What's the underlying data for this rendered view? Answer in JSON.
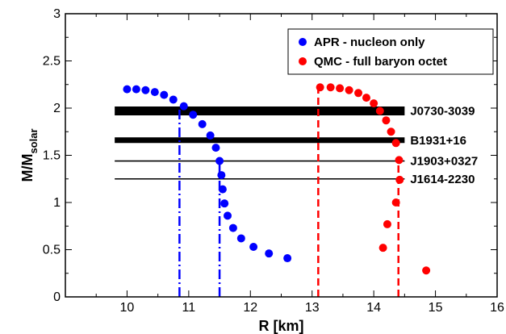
{
  "chart_data": {
    "type": "scatter",
    "xlabel": "R [km]",
    "ylabel": "M/M",
    "ylabel_sub": "solar",
    "xlim": [
      9.0,
      16.0
    ],
    "ylim": [
      0.0,
      3.0
    ],
    "x_ticks": [
      10,
      11,
      12,
      13,
      14,
      15,
      16
    ],
    "y_ticks": [
      0,
      0.5,
      1,
      1.5,
      2,
      2.5,
      3
    ],
    "y_tick_labels": [
      "0",
      "0.5",
      "1",
      "1.5",
      "2",
      "2.5",
      "3"
    ],
    "legend_position": "top-right",
    "series": [
      {
        "name": "APR - nucleon only",
        "color": "#0000ff",
        "points": [
          [
            10.0,
            2.2
          ],
          [
            10.15,
            2.2
          ],
          [
            10.3,
            2.19
          ],
          [
            10.45,
            2.17
          ],
          [
            10.6,
            2.14
          ],
          [
            10.75,
            2.09
          ],
          [
            10.92,
            2.02
          ],
          [
            11.07,
            1.93
          ],
          [
            11.22,
            1.83
          ],
          [
            11.35,
            1.71
          ],
          [
            11.44,
            1.58
          ],
          [
            11.5,
            1.44
          ],
          [
            11.53,
            1.29
          ],
          [
            11.55,
            1.14
          ],
          [
            11.58,
            0.99
          ],
          [
            11.63,
            0.86
          ],
          [
            11.72,
            0.73
          ],
          [
            11.85,
            0.62
          ],
          [
            12.05,
            0.53
          ],
          [
            12.3,
            0.46
          ],
          [
            12.6,
            0.41
          ]
        ]
      },
      {
        "name": "QMC - full baryon octet",
        "color": "#ff0000",
        "points": [
          [
            13.13,
            2.22
          ],
          [
            13.3,
            2.22
          ],
          [
            13.45,
            2.21
          ],
          [
            13.6,
            2.19
          ],
          [
            13.75,
            2.16
          ],
          [
            13.88,
            2.11
          ],
          [
            14.0,
            2.05
          ],
          [
            14.1,
            1.97
          ],
          [
            14.2,
            1.87
          ],
          [
            14.28,
            1.75
          ],
          [
            14.36,
            1.63
          ],
          [
            14.41,
            1.45
          ],
          [
            14.42,
            1.24
          ],
          [
            14.36,
            1.0
          ],
          [
            14.22,
            0.77
          ],
          [
            14.15,
            0.52
          ],
          [
            14.85,
            0.28
          ]
        ]
      }
    ],
    "pulsars": [
      {
        "name": "J0730-3039",
        "mass": 1.97,
        "thickness": "thick"
      },
      {
        "name": "B1931+16",
        "mass": 1.66,
        "thickness": "medium"
      },
      {
        "name": "J1903+0327",
        "mass": 1.44,
        "thickness": "thin"
      },
      {
        "name": "J1614-2230",
        "mass": 1.25,
        "thickness": "thin"
      }
    ],
    "band_x_range": [
      9.8,
      14.5
    ],
    "radius_markers": [
      {
        "series": "APR - nucleon only",
        "x": 10.85,
        "ymax": 2.0,
        "style": "dash-dot",
        "color": "#0000ff"
      },
      {
        "series": "APR - nucleon only",
        "x": 11.5,
        "ymax": 1.44,
        "style": "dash-dot",
        "color": "#0000ff"
      },
      {
        "series": "QMC - full baryon octet",
        "x": 13.1,
        "ymax": 2.22,
        "style": "dashed",
        "color": "#ff0000"
      },
      {
        "series": "QMC - full baryon octet",
        "x": 14.4,
        "ymax": 1.44,
        "style": "dashed",
        "color": "#ff0000"
      }
    ]
  }
}
